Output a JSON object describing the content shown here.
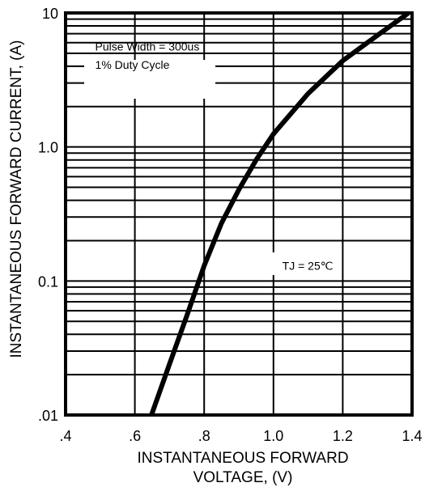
{
  "chart_data": {
    "type": "line",
    "title": "",
    "xlabel_lines": [
      "INSTANTANEOUS FORWARD",
      "VOLTAGE, (V)"
    ],
    "ylabel": "INSTANTANEOUS FORWARD CURRENT, (A)",
    "xlim": [
      0.4,
      1.4
    ],
    "ylim": [
      0.01,
      10
    ],
    "yscale": "log",
    "grid": true,
    "x_ticks": [
      0.4,
      0.6,
      0.8,
      1.0,
      1.2,
      1.4
    ],
    "x_tick_labels": [
      ".4",
      ".6",
      ".8",
      "1.0",
      "1.2",
      "1.4"
    ],
    "y_ticks": [
      0.01,
      0.1,
      1.0,
      10
    ],
    "y_tick_labels": [
      ".01",
      "0.1",
      "1.0",
      "10"
    ],
    "series": [
      {
        "x": [
          0.648,
          0.7,
          0.75,
          0.8,
          0.85,
          0.9,
          0.95,
          1.0,
          1.1,
          1.2,
          1.3,
          1.39
        ],
        "y": [
          0.01,
          0.024,
          0.055,
          0.13,
          0.27,
          0.48,
          0.8,
          1.25,
          2.5,
          4.4,
          6.8,
          10
        ]
      }
    ],
    "annotations": [
      {
        "text": "Pulse Width = 300us",
        "x": 0.42,
        "y": 5.6
      },
      {
        "text": "1% Duty Cycle",
        "x": 0.42,
        "y": 4.1
      },
      {
        "text": "TJ = 25℃",
        "x": 0.96,
        "y": 0.13
      }
    ],
    "colors": {
      "line": "#000000",
      "grid": "#000000",
      "background": "#ffffff"
    }
  }
}
